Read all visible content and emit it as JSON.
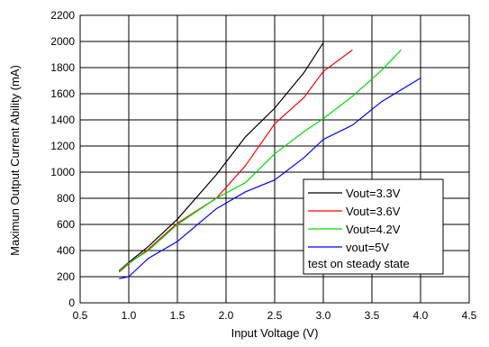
{
  "chart_data": {
    "type": "line",
    "xlabel": "Input Voltage (V)",
    "ylabel": "Maximun Output Current Ability (mA)",
    "xlim": [
      0.5,
      4.5
    ],
    "ylim": [
      0,
      2200
    ],
    "xticks": [
      "0.5",
      "1.0",
      "1.5",
      "2.0",
      "2.5",
      "3.0",
      "3.5",
      "4.0",
      "4.5"
    ],
    "yticks": [
      "0",
      "200",
      "400",
      "600",
      "800",
      "1000",
      "1200",
      "1400",
      "1600",
      "1800",
      "2000",
      "2200"
    ],
    "grid": true,
    "legend_position": "bottom-right",
    "legend_note": "test on steady state",
    "series": [
      {
        "name": "Vout=3.3V",
        "color": "#000000",
        "x": [
          0.9,
          1.0,
          1.2,
          1.5,
          1.9,
          2.2,
          2.5,
          2.8,
          3.0
        ],
        "y": [
          245,
          310,
          430,
          640,
          980,
          1270,
          1490,
          1760,
          1990
        ]
      },
      {
        "name": "Vout=3.6V",
        "color": "#ff0000",
        "x": [
          0.9,
          1.0,
          1.2,
          1.5,
          1.9,
          2.2,
          2.5,
          2.8,
          3.0,
          3.3
        ],
        "y": [
          235,
          300,
          410,
          610,
          800,
          1050,
          1370,
          1570,
          1770,
          1935
        ]
      },
      {
        "name": "Vout=4.2V",
        "color": "#00dd00",
        "x": [
          0.9,
          1.0,
          1.2,
          1.5,
          1.9,
          2.2,
          2.5,
          2.8,
          3.0,
          3.3,
          3.6,
          3.8
        ],
        "y": [
          240,
          305,
          400,
          600,
          800,
          920,
          1140,
          1310,
          1410,
          1580,
          1780,
          1935
        ]
      },
      {
        "name": "vout=5V",
        "color": "#0000ff",
        "x": [
          0.9,
          1.0,
          1.2,
          1.5,
          1.9,
          2.2,
          2.5,
          2.8,
          3.0,
          3.3,
          3.6,
          4.0
        ],
        "y": [
          185,
          200,
          340,
          470,
          720,
          850,
          940,
          1110,
          1250,
          1360,
          1540,
          1720
        ]
      }
    ]
  }
}
